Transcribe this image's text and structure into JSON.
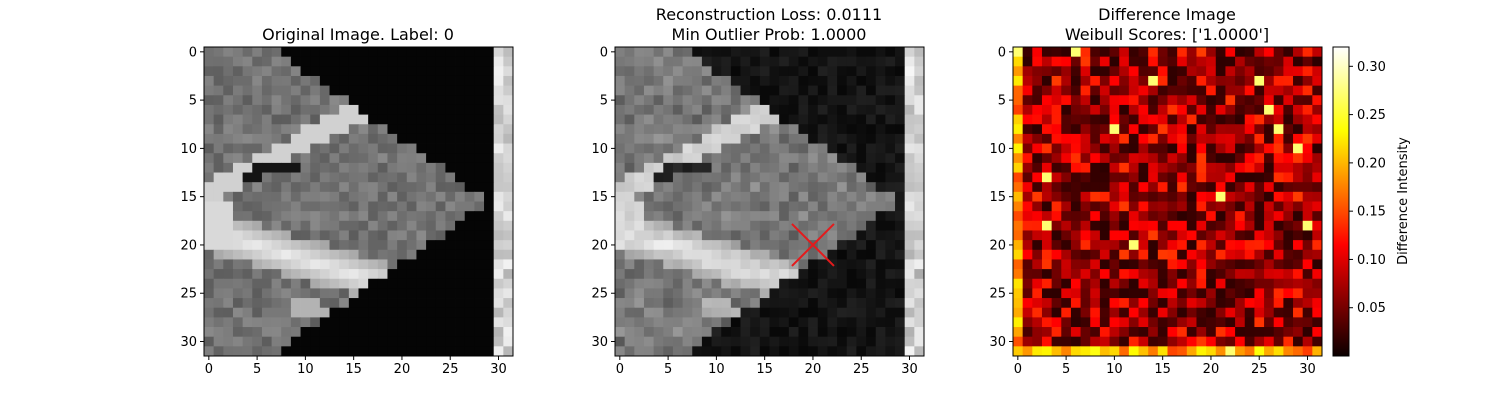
{
  "chart_data": [
    {
      "type": "heatmap",
      "panel": "original",
      "title_lines": [
        "Original Image. Label: 0"
      ],
      "colormap": "gray",
      "x_ticks": [
        "0",
        "5",
        "10",
        "15",
        "20",
        "25",
        "30"
      ],
      "y_ticks": [
        "0",
        "5",
        "10",
        "15",
        "20",
        "25",
        "30"
      ],
      "grid_size": [
        32,
        32
      ],
      "xlim": [
        -0.5,
        31.5
      ],
      "ylim": [
        31.5,
        -0.5
      ]
    },
    {
      "type": "heatmap",
      "panel": "reconstruction",
      "title_lines": [
        "Reconstruction Loss: 0.0111",
        "Min Outlier Prob: 1.0000"
      ],
      "colormap": "gray",
      "x_ticks": [
        "0",
        "5",
        "10",
        "15",
        "20",
        "25",
        "30"
      ],
      "y_ticks": [
        "0",
        "5",
        "10",
        "15",
        "20",
        "25",
        "30"
      ],
      "grid_size": [
        32,
        32
      ],
      "xlim": [
        -0.5,
        31.5
      ],
      "ylim": [
        31.5,
        -0.5
      ],
      "marker": {
        "shape": "x",
        "x": 20,
        "y": 20,
        "color": "#e41a1c"
      }
    },
    {
      "type": "heatmap",
      "panel": "difference",
      "title_lines": [
        "Difference Image",
        "Weibull Scores: ['1.0000']"
      ],
      "colormap": "hot",
      "x_ticks": [
        "0",
        "5",
        "10",
        "15",
        "20",
        "25",
        "30"
      ],
      "y_ticks": [
        "0",
        "5",
        "10",
        "15",
        "20",
        "25",
        "30"
      ],
      "grid_size": [
        32,
        32
      ],
      "xlim": [
        -0.5,
        31.5
      ],
      "ylim": [
        31.5,
        -0.5
      ],
      "colorbar": {
        "label": "Difference Intensity",
        "range": [
          0.0,
          0.32
        ],
        "ticks": [
          "0.05",
          "0.10",
          "0.15",
          "0.20",
          "0.25",
          "0.30"
        ],
        "tick_values": [
          0.05,
          0.1,
          0.15,
          0.2,
          0.25,
          0.3
        ]
      }
    }
  ]
}
